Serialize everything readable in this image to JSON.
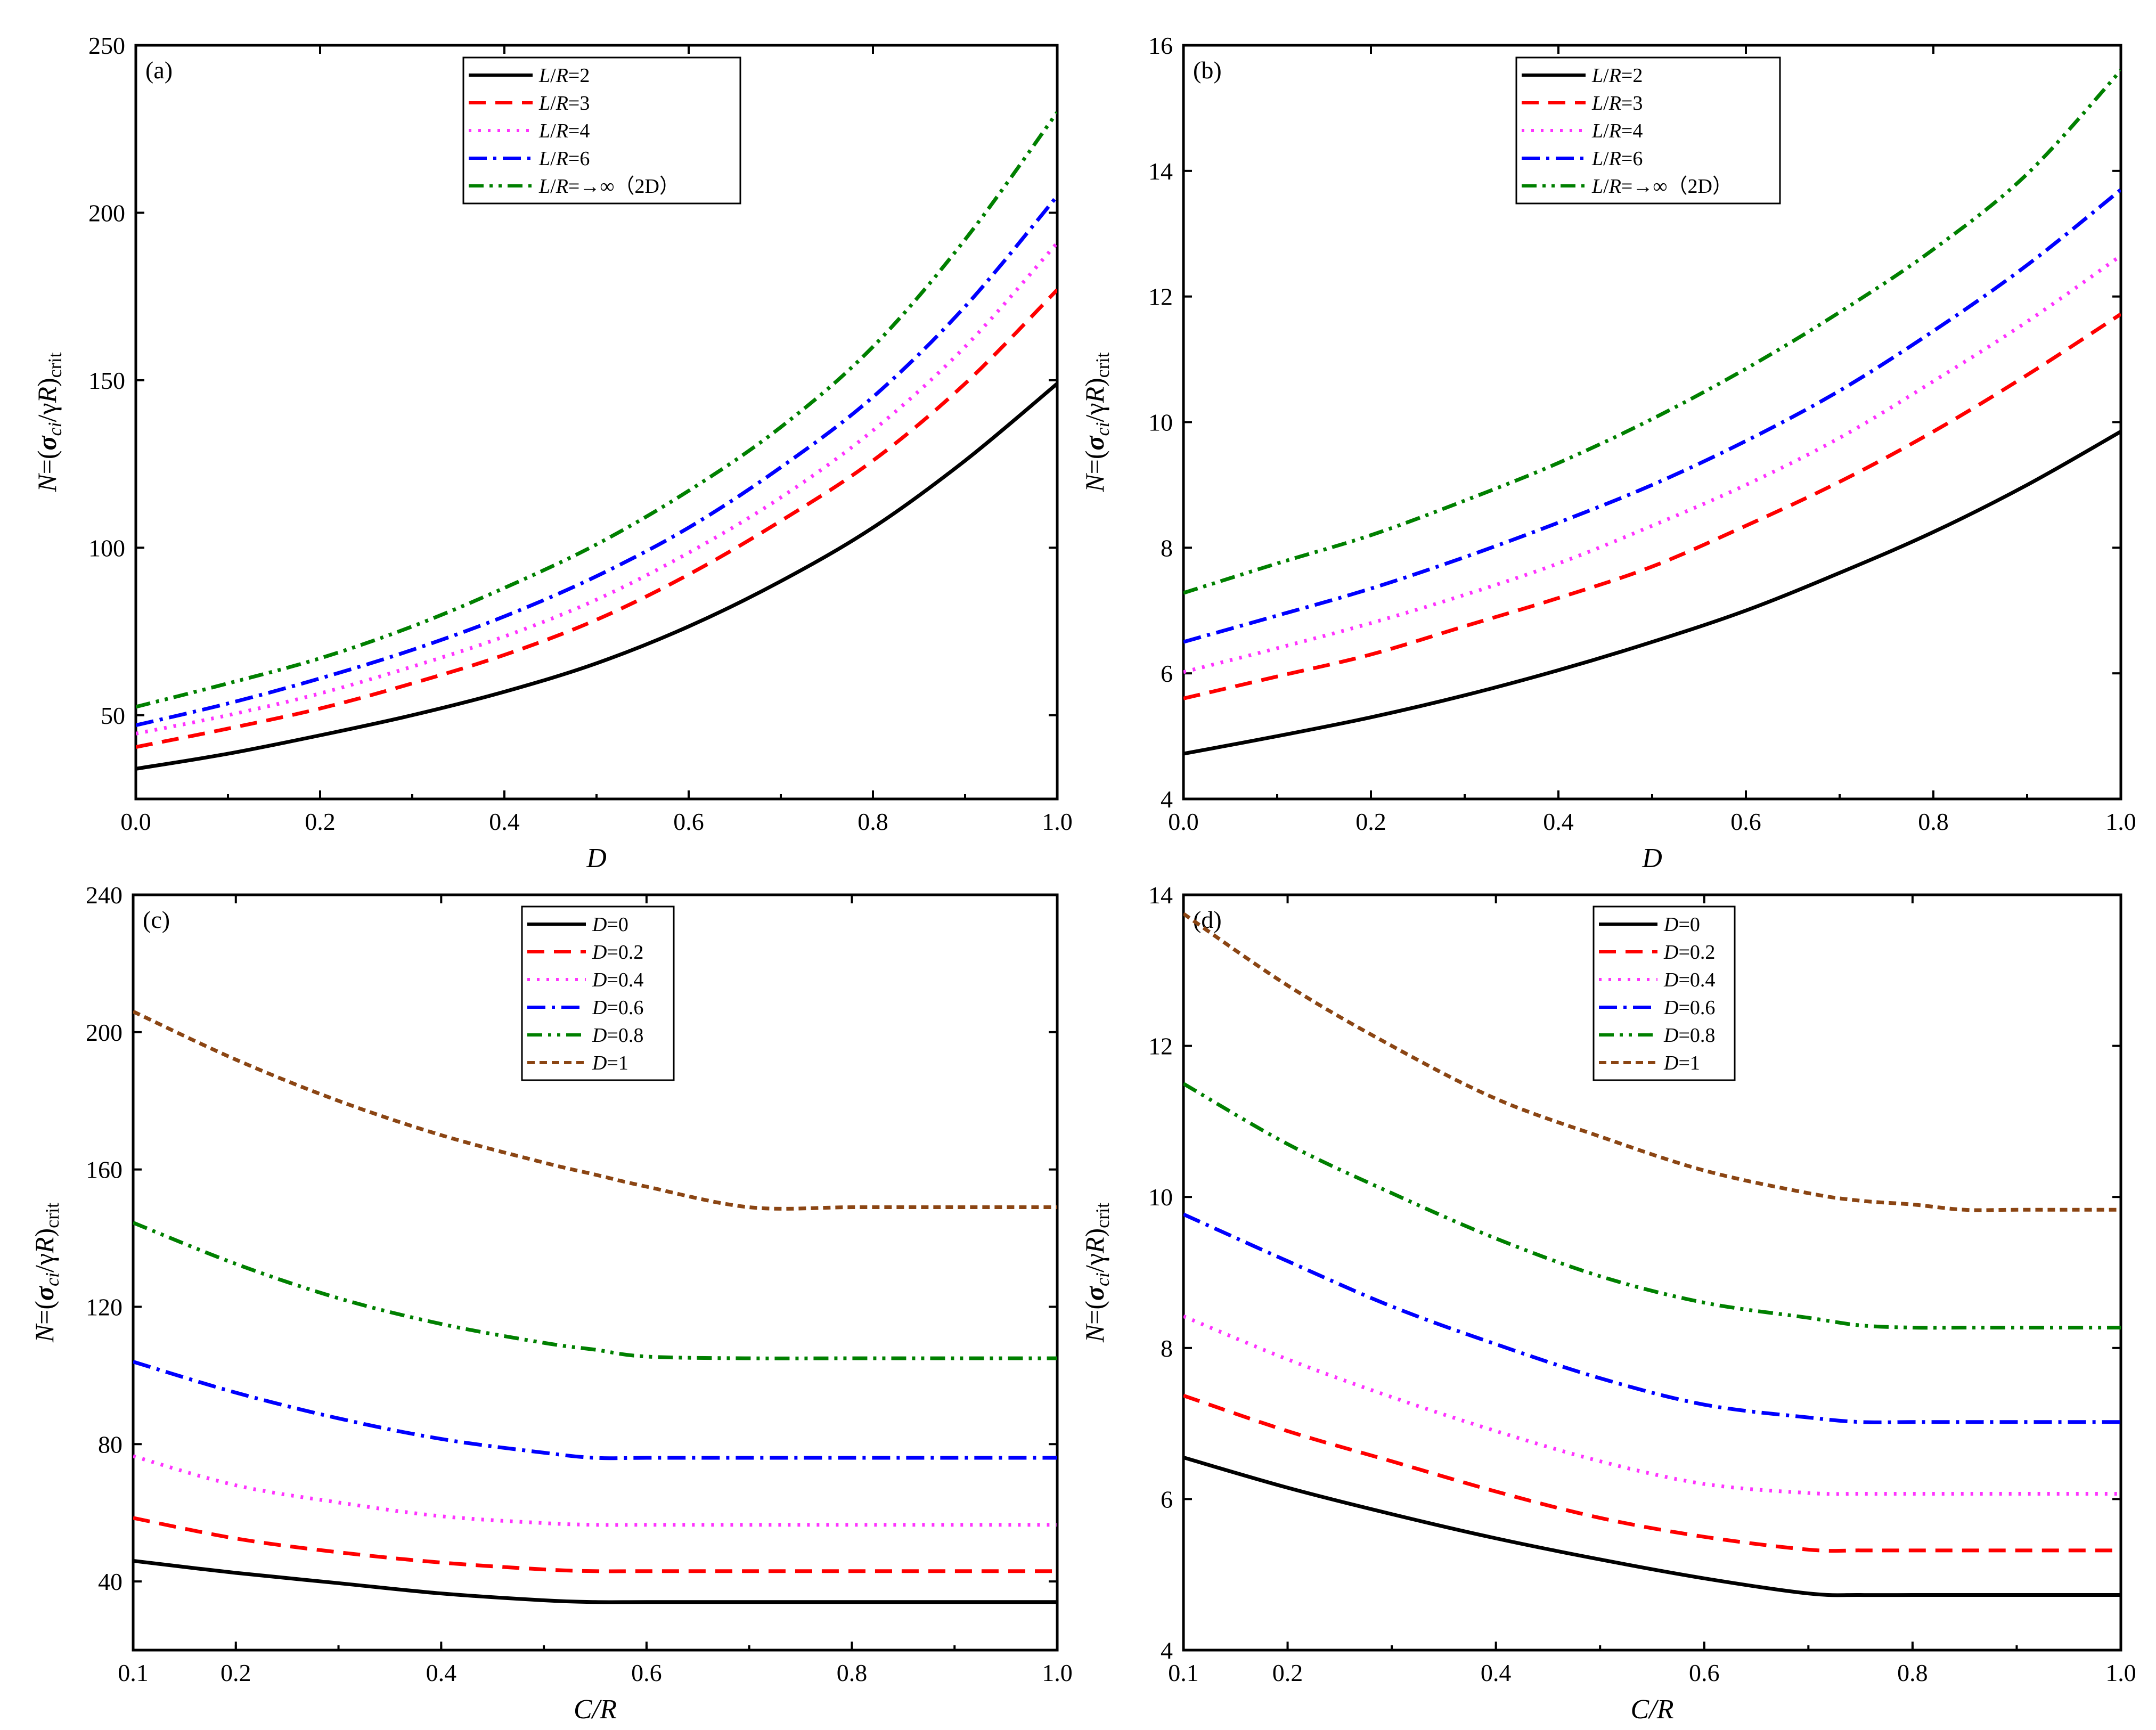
{
  "figure": {
    "panels": [
      {
        "id": "a",
        "label": "(a)",
        "ylabel": "N=(σci/γR)crit",
        "ylabel_parts": {
          "n": "N",
          "eq": "=(",
          "sigma": "σ",
          "ci": "ci",
          "slash": "/γ",
          "r": "R",
          "close": ")",
          "sub": "crit"
        },
        "xlabel": "D",
        "xlabel_parts": {
          "main": "D",
          "slash": "",
          "rest": ""
        },
        "x_ticks": [
          "0.0",
          "0.2",
          "0.4",
          "0.6",
          "0.8",
          "1.0"
        ],
        "y_ticks": [
          "50",
          "100",
          "150",
          "200",
          "250"
        ],
        "legend": {
          "entries": [
            {
              "it": "L",
              "mid": "/",
              "it2": "R",
              "rest": "=2"
            },
            {
              "it": "L",
              "mid": "/",
              "it2": "R",
              "rest": "=3"
            },
            {
              "it": "L",
              "mid": "/",
              "it2": "R",
              "rest": "=4"
            },
            {
              "it": "L",
              "mid": "/",
              "it2": "R",
              "rest": "=6"
            },
            {
              "it": "L",
              "mid": "/",
              "it2": "R",
              "rest": "=→∞（2D）"
            }
          ]
        }
      },
      {
        "id": "b",
        "label": "(b)",
        "ylabel": "N=(σci/γR)crit",
        "ylabel_parts": {
          "n": "N",
          "eq": "=(",
          "sigma": "σ",
          "ci": "ci",
          "slash": "/γ",
          "r": "R",
          "close": ")",
          "sub": "crit"
        },
        "xlabel": "D",
        "xlabel_parts": {
          "main": "D",
          "slash": "",
          "rest": ""
        },
        "x_ticks": [
          "0.0",
          "0.2",
          "0.4",
          "0.6",
          "0.8",
          "1.0"
        ],
        "y_ticks": [
          "4",
          "6",
          "8",
          "10",
          "12",
          "14",
          "16"
        ],
        "legend": {
          "entries": [
            {
              "it": "L",
              "mid": "/",
              "it2": "R",
              "rest": "=2"
            },
            {
              "it": "L",
              "mid": "/",
              "it2": "R",
              "rest": "=3"
            },
            {
              "it": "L",
              "mid": "/",
              "it2": "R",
              "rest": "=4"
            },
            {
              "it": "L",
              "mid": "/",
              "it2": "R",
              "rest": "=6"
            },
            {
              "it": "L",
              "mid": "/",
              "it2": "R",
              "rest": "=→∞（2D）"
            }
          ]
        }
      },
      {
        "id": "c",
        "label": "(c)",
        "ylabel": "N=(σci/γR)crit",
        "ylabel_parts": {
          "n": "N",
          "eq": "=(",
          "sigma": "σ",
          "ci": "ci",
          "slash": "/γ",
          "r": "R",
          "close": ")",
          "sub": "crit"
        },
        "xlabel": "C/R",
        "xlabel_parts": {
          "main": "C",
          "slash": "/",
          "rest": "R"
        },
        "x_ticks": [
          "0.1",
          "0.2",
          "0.4",
          "0.6",
          "0.8",
          "1.0"
        ],
        "y_ticks": [
          "40",
          "80",
          "120",
          "160",
          "200",
          "240"
        ],
        "legend": {
          "entries": [
            {
              "it": "D",
              "mid": "",
              "it2": "",
              "rest": "=0"
            },
            {
              "it": "D",
              "mid": "",
              "it2": "",
              "rest": "=0.2"
            },
            {
              "it": "D",
              "mid": "",
              "it2": "",
              "rest": "=0.4"
            },
            {
              "it": "D",
              "mid": "",
              "it2": "",
              "rest": "=0.6"
            },
            {
              "it": "D",
              "mid": "",
              "it2": "",
              "rest": "=0.8"
            },
            {
              "it": "D",
              "mid": "",
              "it2": "",
              "rest": "=1"
            }
          ]
        }
      },
      {
        "id": "d",
        "label": "(d)",
        "ylabel": "N=(σci/γR)crit",
        "ylabel_parts": {
          "n": "N",
          "eq": "=(",
          "sigma": "σ",
          "ci": "ci",
          "slash": "/γ",
          "r": "R",
          "close": ")",
          "sub": "crit"
        },
        "xlabel": "C/R",
        "xlabel_parts": {
          "main": "C",
          "slash": "/",
          "rest": "R"
        },
        "x_ticks": [
          "0.1",
          "0.2",
          "0.4",
          "0.6",
          "0.8",
          "1.0"
        ],
        "y_ticks": [
          "4",
          "6",
          "8",
          "10",
          "12",
          "14"
        ],
        "legend": {
          "entries": [
            {
              "it": "D",
              "mid": "",
              "it2": "",
              "rest": "=0"
            },
            {
              "it": "D",
              "mid": "",
              "it2": "",
              "rest": "=0.2"
            },
            {
              "it": "D",
              "mid": "",
              "it2": "",
              "rest": "=0.4"
            },
            {
              "it": "D",
              "mid": "",
              "it2": "",
              "rest": "=0.6"
            },
            {
              "it": "D",
              "mid": "",
              "it2": "",
              "rest": "=0.8"
            },
            {
              "it": "D",
              "mid": "",
              "it2": "",
              "rest": "=1"
            }
          ]
        }
      }
    ]
  },
  "colors": {
    "black": "#000000",
    "red": "#ff0000",
    "magenta": "#ff33ff",
    "blue": "#0000ff",
    "green": "#008000",
    "brown": "#8b4513"
  },
  "chart_data": [
    {
      "panel": "a",
      "type": "line",
      "xlabel": "D",
      "ylabel": "N=(σci/γR)crit",
      "xlim": [
        0,
        1
      ],
      "ylim": [
        25,
        250
      ],
      "x": [
        0,
        0.1,
        0.2,
        0.3,
        0.4,
        0.5,
        0.6,
        0.7,
        0.8,
        0.9,
        1.0
      ],
      "series": [
        {
          "name": "L/R=2",
          "color": "#000000",
          "dash": "solid",
          "values": [
            34,
            38.5,
            44,
            50,
            57,
            65.5,
            76.5,
            90,
            106,
            126,
            149
          ]
        },
        {
          "name": "L/R=3",
          "color": "#ff0000",
          "dash": "dash",
          "values": [
            40.5,
            46,
            52,
            59.5,
            68,
            78.5,
            92,
            108,
            126,
            149,
            177
          ]
        },
        {
          "name": "L/R=4",
          "color": "#ff33ff",
          "dash": "dot",
          "values": [
            44.5,
            50,
            56.5,
            64.5,
            73.5,
            84.5,
            98.5,
            115,
            135,
            160,
            191
          ]
        },
        {
          "name": "L/R=6",
          "color": "#0000ff",
          "dash": "dashdot",
          "values": [
            47,
            53.5,
            61,
            69.5,
            79.5,
            91.5,
            106,
            124,
            145,
            172,
            205
          ]
        },
        {
          "name": "L/R=→∞（2D）",
          "color": "#008000",
          "dash": "dashdotdot",
          "values": [
            52.5,
            59.5,
            67,
            76.5,
            88,
            101,
            117,
            136,
            160,
            192,
            230
          ]
        }
      ]
    },
    {
      "panel": "b",
      "type": "line",
      "xlabel": "D",
      "ylabel": "N=(σci/γR)crit",
      "xlim": [
        0,
        1
      ],
      "ylim": [
        4,
        16
      ],
      "x": [
        0,
        0.1,
        0.2,
        0.3,
        0.4,
        0.5,
        0.6,
        0.7,
        0.8,
        0.9,
        1.0
      ],
      "series": [
        {
          "name": "L/R=2",
          "color": "#000000",
          "dash": "solid",
          "values": [
            4.72,
            5.0,
            5.3,
            5.65,
            6.05,
            6.5,
            7.0,
            7.6,
            8.25,
            9.0,
            9.85
          ]
        },
        {
          "name": "L/R=3",
          "color": "#ff0000",
          "dash": "dash",
          "values": [
            5.6,
            5.95,
            6.3,
            6.75,
            7.2,
            7.7,
            8.35,
            9.05,
            9.85,
            10.75,
            11.72
          ]
        },
        {
          "name": "L/R=4",
          "color": "#ff33ff",
          "dash": "dot",
          "values": [
            6.02,
            6.4,
            6.8,
            7.25,
            7.75,
            8.35,
            9.0,
            9.75,
            10.65,
            11.6,
            12.65
          ]
        },
        {
          "name": "L/R=6",
          "color": "#0000ff",
          "dash": "dashdot",
          "values": [
            6.5,
            6.92,
            7.35,
            7.85,
            8.4,
            9.0,
            9.7,
            10.5,
            11.45,
            12.5,
            13.7
          ]
        },
        {
          "name": "L/R=→∞（2D）",
          "color": "#008000",
          "dash": "dashdotdot",
          "values": [
            7.28,
            7.75,
            8.2,
            8.75,
            9.35,
            10.05,
            10.85,
            11.75,
            12.75,
            13.95,
            15.6
          ]
        }
      ]
    },
    {
      "panel": "c",
      "type": "line",
      "xlabel": "C/R",
      "ylabel": "N=(σci/γR)crit",
      "xlim": [
        0.1,
        1
      ],
      "ylim": [
        20,
        240
      ],
      "x": [
        0.1,
        0.2,
        0.3,
        0.4,
        0.5,
        0.55,
        0.6,
        0.7,
        0.8,
        0.9,
        1.0
      ],
      "series": [
        {
          "name": "D=0",
          "color": "#000000",
          "dash": "solid",
          "values": [
            46,
            42.5,
            39.5,
            36.5,
            34.5,
            34,
            34,
            34,
            34,
            34,
            34
          ]
        },
        {
          "name": "D=0.2",
          "color": "#ff0000",
          "dash": "dash",
          "values": [
            58.5,
            52.5,
            48.5,
            45.5,
            43.5,
            43,
            43,
            43,
            43,
            43,
            43
          ]
        },
        {
          "name": "D=0.4",
          "color": "#ff33ff",
          "dash": "dot",
          "values": [
            76.5,
            68,
            63,
            59,
            57,
            56.5,
            56.5,
            56.5,
            56.5,
            56.5,
            56.5
          ]
        },
        {
          "name": "D=0.6",
          "color": "#0000ff",
          "dash": "dashdot",
          "values": [
            104,
            95,
            87.5,
            81.5,
            77.5,
            76,
            76,
            76,
            76,
            76,
            76
          ]
        },
        {
          "name": "D=0.8",
          "color": "#008000",
          "dash": "dashdotdot",
          "values": [
            144.5,
            132.5,
            122.5,
            115,
            109.5,
            107.5,
            105.5,
            105,
            105,
            105,
            105
          ]
        },
        {
          "name": "D=1",
          "color": "#8b4513",
          "dash": "shortdash",
          "values": [
            206,
            192,
            180,
            170,
            162,
            158.5,
            155,
            149,
            149,
            149,
            149
          ]
        }
      ]
    },
    {
      "panel": "d",
      "type": "line",
      "xlabel": "C/R",
      "ylabel": "N=(σci/γR)crit",
      "xlim": [
        0.1,
        1
      ],
      "ylim": [
        4,
        14
      ],
      "x": [
        0.1,
        0.2,
        0.3,
        0.4,
        0.5,
        0.6,
        0.7,
        0.75,
        0.8,
        0.85,
        0.9,
        1.0
      ],
      "series": [
        {
          "name": "D=0",
          "color": "#000000",
          "dash": "solid",
          "values": [
            6.55,
            6.15,
            5.8,
            5.48,
            5.2,
            4.95,
            4.75,
            4.73,
            4.73,
            4.73,
            4.73,
            4.73
          ]
        },
        {
          "name": "D=0.2",
          "color": "#ff0000",
          "dash": "dash",
          "values": [
            7.37,
            6.9,
            6.5,
            6.1,
            5.75,
            5.5,
            5.33,
            5.32,
            5.32,
            5.32,
            5.32,
            5.32
          ]
        },
        {
          "name": "D=0.4",
          "color": "#ff33ff",
          "dash": "dot",
          "values": [
            8.42,
            7.85,
            7.35,
            6.9,
            6.5,
            6.2,
            6.08,
            6.07,
            6.07,
            6.07,
            6.07,
            6.07
          ]
        },
        {
          "name": "D=0.6",
          "color": "#0000ff",
          "dash": "dashdot",
          "values": [
            9.77,
            9.15,
            8.55,
            8.05,
            7.6,
            7.25,
            7.08,
            7.02,
            7.02,
            7.02,
            7.02,
            7.02
          ]
        },
        {
          "name": "D=0.8",
          "color": "#008000",
          "dash": "dashdotdot",
          "values": [
            11.5,
            10.7,
            10.05,
            9.45,
            8.95,
            8.6,
            8.4,
            8.3,
            8.27,
            8.27,
            8.27,
            8.27
          ]
        },
        {
          "name": "D=1",
          "color": "#8b4513",
          "dash": "shortdash",
          "values": [
            13.75,
            12.8,
            12.0,
            11.3,
            10.8,
            10.35,
            10.05,
            9.95,
            9.9,
            9.83,
            9.83,
            9.83
          ]
        }
      ]
    }
  ]
}
